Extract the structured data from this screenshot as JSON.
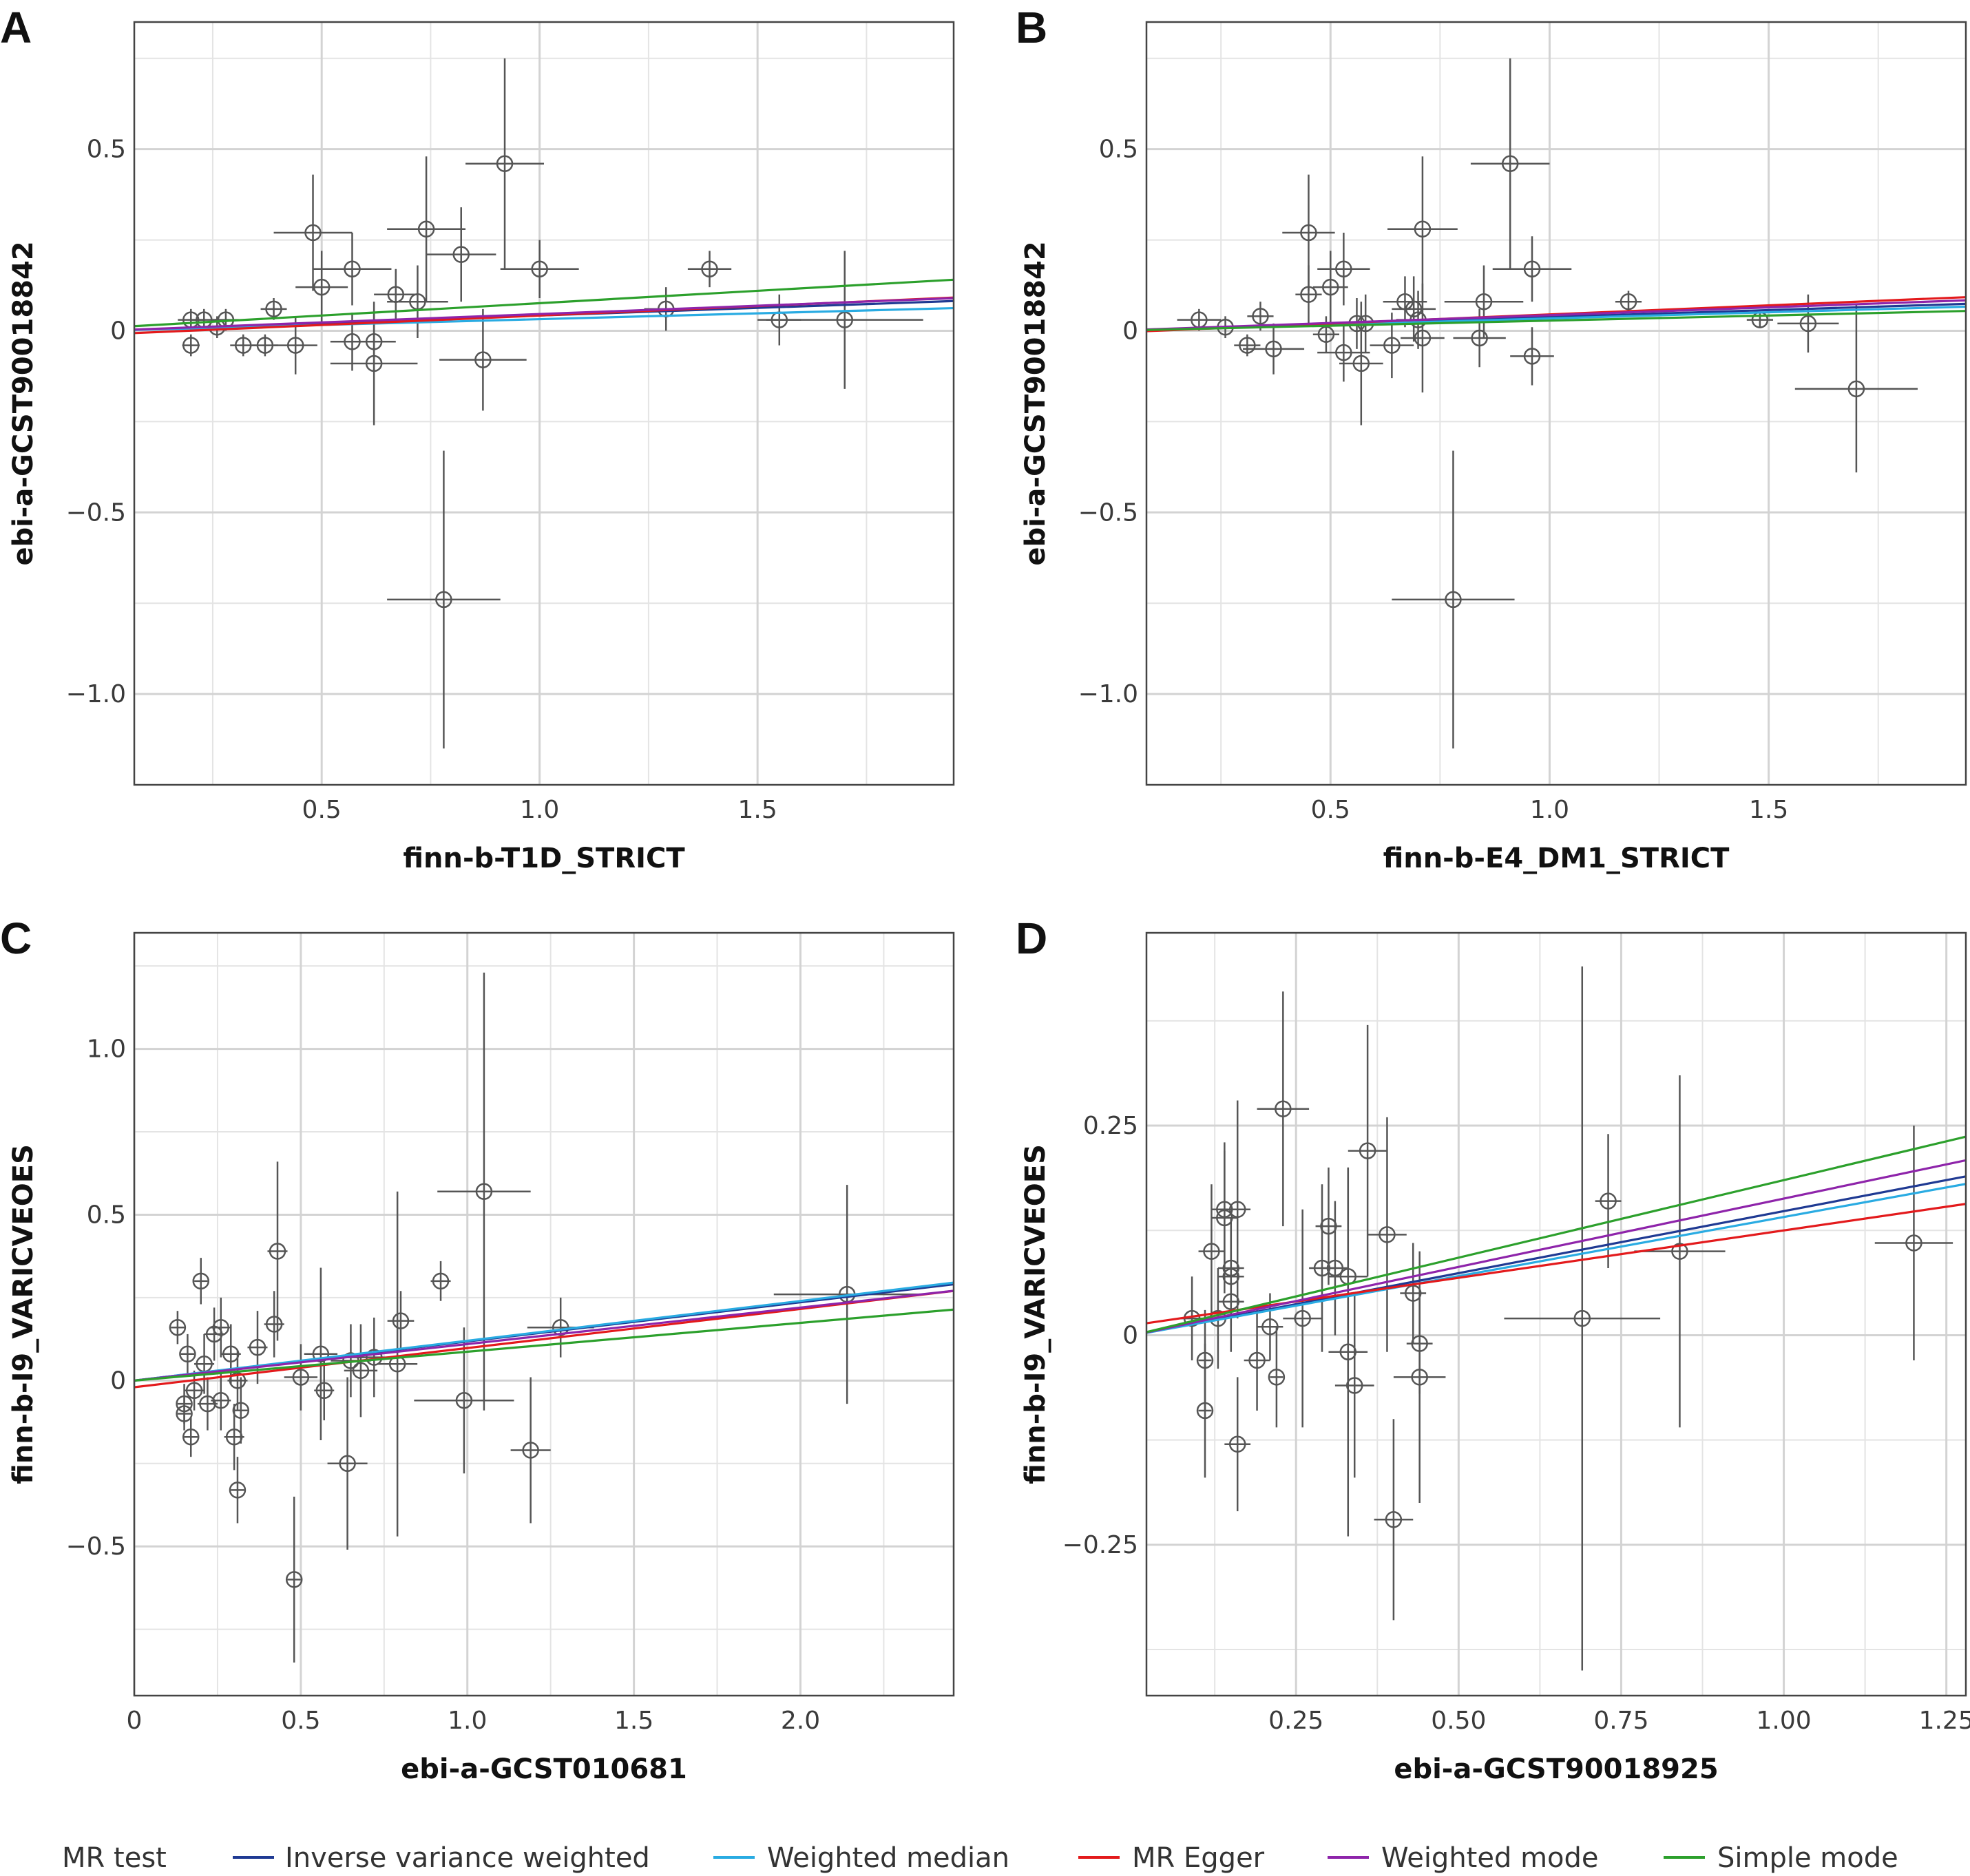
{
  "legend": {
    "title": "MR test",
    "items": [
      {
        "label": "Inverse variance weighted",
        "color": "#1f3a93"
      },
      {
        "label": "Weighted median",
        "color": "#29abe2"
      },
      {
        "label": "MR Egger",
        "color": "#e31a1c"
      },
      {
        "label": "Weighted mode",
        "color": "#8e24aa"
      },
      {
        "label": "Simple mode",
        "color": "#2ca02c"
      }
    ]
  },
  "chart_data": [
    {
      "panel": "A",
      "type": "scatter",
      "xlabel": "finn-b-T1D_STRICT",
      "ylabel": "ebi-a-GCST90018842",
      "xlim": [
        0.07,
        1.95
      ],
      "ylim": [
        -1.25,
        0.85
      ],
      "x_ticks": [
        0.5,
        1.0,
        1.5
      ],
      "x_tick_labels": [
        "0.5",
        "1.0",
        "1.5"
      ],
      "y_ticks": [
        -1.0,
        -0.5,
        0,
        0.5
      ],
      "y_tick_labels": [
        "−1.0",
        "−0.5",
        "0",
        "0.5"
      ],
      "grid": true,
      "points": [
        {
          "x": 0.2,
          "y": 0.03,
          "xerr": 0.03,
          "yerr": 0.03
        },
        {
          "x": 0.2,
          "y": -0.04,
          "xerr": 0.02,
          "yerr": 0.03
        },
        {
          "x": 0.23,
          "y": 0.03,
          "xerr": 0.03,
          "yerr": 0.03
        },
        {
          "x": 0.26,
          "y": 0.01,
          "xerr": 0.03,
          "yerr": 0.03
        },
        {
          "x": 0.28,
          "y": 0.03,
          "xerr": 0.03,
          "yerr": 0.03
        },
        {
          "x": 0.32,
          "y": -0.04,
          "xerr": 0.03,
          "yerr": 0.03
        },
        {
          "x": 0.37,
          "y": -0.04,
          "xerr": 0.03,
          "yerr": 0.03
        },
        {
          "x": 0.39,
          "y": 0.06,
          "xerr": 0.03,
          "yerr": 0.03
        },
        {
          "x": 0.44,
          "y": -0.04,
          "xerr": 0.05,
          "yerr": 0.08
        },
        {
          "x": 0.48,
          "y": 0.27,
          "xerr": 0.09,
          "yerr": 0.16
        },
        {
          "x": 0.5,
          "y": 0.12,
          "xerr": 0.06,
          "yerr": 0.1
        },
        {
          "x": 0.57,
          "y": 0.17,
          "xerr": 0.09,
          "yerr": 0.1
        },
        {
          "x": 0.57,
          "y": -0.03,
          "xerr": 0.05,
          "yerr": 0.08
        },
        {
          "x": 0.62,
          "y": -0.03,
          "xerr": 0.05,
          "yerr": 0.08
        },
        {
          "x": 0.62,
          "y": -0.09,
          "xerr": 0.1,
          "yerr": 0.17
        },
        {
          "x": 0.67,
          "y": 0.1,
          "xerr": 0.05,
          "yerr": 0.07
        },
        {
          "x": 0.72,
          "y": 0.08,
          "xerr": 0.07,
          "yerr": 0.1
        },
        {
          "x": 0.74,
          "y": 0.28,
          "xerr": 0.09,
          "yerr": 0.2
        },
        {
          "x": 0.78,
          "y": -0.74,
          "xerr": 0.13,
          "yerr": 0.41
        },
        {
          "x": 0.82,
          "y": 0.21,
          "xerr": 0.08,
          "yerr": 0.13
        },
        {
          "x": 0.87,
          "y": -0.08,
          "xerr": 0.1,
          "yerr": 0.14
        },
        {
          "x": 0.92,
          "y": 0.46,
          "xerr": 0.09,
          "yerr": 0.29
        },
        {
          "x": 1.0,
          "y": 0.17,
          "xerr": 0.09,
          "yerr": 0.08
        },
        {
          "x": 1.29,
          "y": 0.06,
          "xerr": 0.05,
          "yerr": 0.06
        },
        {
          "x": 1.39,
          "y": 0.17,
          "xerr": 0.05,
          "yerr": 0.05
        },
        {
          "x": 1.55,
          "y": 0.03,
          "xerr": 0.05,
          "yerr": 0.07
        },
        {
          "x": 1.7,
          "y": 0.03,
          "xerr": 0.18,
          "yerr": 0.19
        }
      ],
      "lines": [
        {
          "method": "Inverse variance weighted",
          "slope": 0.042,
          "intercept": 0.0
        },
        {
          "method": "Weighted median",
          "slope": 0.032,
          "intercept": 0.0
        },
        {
          "method": "MR Egger",
          "slope": 0.052,
          "intercept": -0.01
        },
        {
          "method": "Weighted mode",
          "slope": 0.046,
          "intercept": 0.0
        },
        {
          "method": "Simple mode",
          "slope": 0.068,
          "intercept": 0.008
        }
      ]
    },
    {
      "panel": "B",
      "type": "scatter",
      "xlabel": "finn-b-E4_DM1_STRICT",
      "ylabel": "ebi-a-GCST90018842",
      "xlim": [
        0.08,
        1.95
      ],
      "ylim": [
        -1.25,
        0.85
      ],
      "x_ticks": [
        0.5,
        1.0,
        1.5
      ],
      "x_tick_labels": [
        "0.5",
        "1.0",
        "1.5"
      ],
      "y_ticks": [
        -1.0,
        -0.5,
        0,
        0.5
      ],
      "y_tick_labels": [
        "−1.0",
        "−0.5",
        "0",
        "0.5"
      ],
      "grid": true,
      "points": [
        {
          "x": 0.2,
          "y": 0.03,
          "xerr": 0.05,
          "yerr": 0.03
        },
        {
          "x": 0.26,
          "y": 0.01,
          "xerr": 0.03,
          "yerr": 0.03
        },
        {
          "x": 0.31,
          "y": -0.04,
          "xerr": 0.03,
          "yerr": 0.03
        },
        {
          "x": 0.34,
          "y": 0.04,
          "xerr": 0.03,
          "yerr": 0.04
        },
        {
          "x": 0.37,
          "y": -0.05,
          "xerr": 0.07,
          "yerr": 0.07
        },
        {
          "x": 0.45,
          "y": 0.27,
          "xerr": 0.06,
          "yerr": 0.16
        },
        {
          "x": 0.45,
          "y": 0.1,
          "xerr": 0.03,
          "yerr": 0.08
        },
        {
          "x": 0.49,
          "y": -0.01,
          "xerr": 0.03,
          "yerr": 0.05
        },
        {
          "x": 0.5,
          "y": 0.12,
          "xerr": 0.04,
          "yerr": 0.1
        },
        {
          "x": 0.53,
          "y": 0.17,
          "xerr": 0.06,
          "yerr": 0.1
        },
        {
          "x": 0.53,
          "y": -0.06,
          "xerr": 0.06,
          "yerr": 0.08
        },
        {
          "x": 0.56,
          "y": 0.02,
          "xerr": 0.04,
          "yerr": 0.07
        },
        {
          "x": 0.57,
          "y": -0.09,
          "xerr": 0.05,
          "yerr": 0.17
        },
        {
          "x": 0.58,
          "y": 0.02,
          "xerr": 0.04,
          "yerr": 0.08
        },
        {
          "x": 0.64,
          "y": -0.04,
          "xerr": 0.05,
          "yerr": 0.09
        },
        {
          "x": 0.67,
          "y": 0.08,
          "xerr": 0.05,
          "yerr": 0.07
        },
        {
          "x": 0.69,
          "y": 0.06,
          "xerr": 0.05,
          "yerr": 0.09
        },
        {
          "x": 0.7,
          "y": 0.03,
          "xerr": 0.05,
          "yerr": 0.08
        },
        {
          "x": 0.71,
          "y": 0.28,
          "xerr": 0.08,
          "yerr": 0.2
        },
        {
          "x": 0.71,
          "y": -0.02,
          "xerr": 0.05,
          "yerr": 0.15
        },
        {
          "x": 0.78,
          "y": -0.74,
          "xerr": 0.14,
          "yerr": 0.41
        },
        {
          "x": 0.84,
          "y": -0.02,
          "xerr": 0.06,
          "yerr": 0.08
        },
        {
          "x": 0.85,
          "y": 0.08,
          "xerr": 0.09,
          "yerr": 0.1
        },
        {
          "x": 0.91,
          "y": 0.46,
          "xerr": 0.09,
          "yerr": 0.29
        },
        {
          "x": 0.96,
          "y": 0.17,
          "xerr": 0.09,
          "yerr": 0.09
        },
        {
          "x": 0.96,
          "y": -0.07,
          "xerr": 0.05,
          "yerr": 0.08
        },
        {
          "x": 1.18,
          "y": 0.08,
          "xerr": 0.03,
          "yerr": 0.03
        },
        {
          "x": 1.48,
          "y": 0.03,
          "xerr": 0.03,
          "yerr": 0.02
        },
        {
          "x": 1.59,
          "y": 0.02,
          "xerr": 0.07,
          "yerr": 0.08
        },
        {
          "x": 1.7,
          "y": -0.16,
          "xerr": 0.14,
          "yerr": 0.23
        }
      ],
      "lines": [
        {
          "method": "Inverse variance weighted",
          "slope": 0.038,
          "intercept": 0.0
        },
        {
          "method": "Weighted median",
          "slope": 0.034,
          "intercept": 0.0
        },
        {
          "method": "MR Egger",
          "slope": 0.05,
          "intercept": -0.005
        },
        {
          "method": "Weighted mode",
          "slope": 0.043,
          "intercept": 0.0
        },
        {
          "method": "Simple mode",
          "slope": 0.028,
          "intercept": 0.0
        }
      ]
    },
    {
      "panel": "C",
      "type": "scatter",
      "xlabel": "ebi-a-GCST010681",
      "ylabel": "finn-b-I9_VARICVEOES",
      "xlim": [
        0.0,
        2.46
      ],
      "ylim": [
        -0.95,
        1.35
      ],
      "x_ticks": [
        0,
        0.5,
        1.0,
        1.5,
        2.0
      ],
      "x_tick_labels": [
        "0",
        "0.5",
        "1.0",
        "1.5",
        "2.0"
      ],
      "y_ticks": [
        -0.5,
        0,
        0.5,
        1.0
      ],
      "y_tick_labels": [
        "−0.5",
        "0",
        "0.5",
        "1.0"
      ],
      "grid": true,
      "points": [
        {
          "x": 0.13,
          "y": 0.16,
          "xerr": 0.02,
          "yerr": 0.05
        },
        {
          "x": 0.15,
          "y": -0.07,
          "xerr": 0.02,
          "yerr": 0.06
        },
        {
          "x": 0.15,
          "y": -0.1,
          "xerr": 0.02,
          "yerr": 0.05
        },
        {
          "x": 0.16,
          "y": 0.08,
          "xerr": 0.02,
          "yerr": 0.06
        },
        {
          "x": 0.17,
          "y": -0.17,
          "xerr": 0.02,
          "yerr": 0.06
        },
        {
          "x": 0.18,
          "y": -0.03,
          "xerr": 0.03,
          "yerr": 0.06
        },
        {
          "x": 0.2,
          "y": 0.3,
          "xerr": 0.02,
          "yerr": 0.07
        },
        {
          "x": 0.21,
          "y": 0.05,
          "xerr": 0.03,
          "yerr": 0.09
        },
        {
          "x": 0.22,
          "y": -0.07,
          "xerr": 0.03,
          "yerr": 0.08
        },
        {
          "x": 0.24,
          "y": 0.14,
          "xerr": 0.03,
          "yerr": 0.08
        },
        {
          "x": 0.26,
          "y": 0.16,
          "xerr": 0.03,
          "yerr": 0.09
        },
        {
          "x": 0.26,
          "y": -0.06,
          "xerr": 0.03,
          "yerr": 0.09
        },
        {
          "x": 0.29,
          "y": 0.08,
          "xerr": 0.03,
          "yerr": 0.09
        },
        {
          "x": 0.3,
          "y": -0.17,
          "xerr": 0.03,
          "yerr": 0.1
        },
        {
          "x": 0.31,
          "y": -0.33,
          "xerr": 0.02,
          "yerr": 0.1
        },
        {
          "x": 0.31,
          "y": 0.0,
          "xerr": 0.03,
          "yerr": 0.09
        },
        {
          "x": 0.32,
          "y": -0.09,
          "xerr": 0.02,
          "yerr": 0.1
        },
        {
          "x": 0.37,
          "y": 0.1,
          "xerr": 0.03,
          "yerr": 0.11
        },
        {
          "x": 0.42,
          "y": 0.17,
          "xerr": 0.03,
          "yerr": 0.1
        },
        {
          "x": 0.43,
          "y": 0.39,
          "xerr": 0.03,
          "yerr": 0.27
        },
        {
          "x": 0.48,
          "y": -0.6,
          "xerr": 0.02,
          "yerr": 0.25
        },
        {
          "x": 0.5,
          "y": 0.01,
          "xerr": 0.05,
          "yerr": 0.1
        },
        {
          "x": 0.56,
          "y": 0.08,
          "xerr": 0.05,
          "yerr": 0.26
        },
        {
          "x": 0.57,
          "y": -0.03,
          "xerr": 0.03,
          "yerr": 0.09
        },
        {
          "x": 0.64,
          "y": -0.25,
          "xerr": 0.06,
          "yerr": 0.26
        },
        {
          "x": 0.65,
          "y": 0.06,
          "xerr": 0.06,
          "yerr": 0.11
        },
        {
          "x": 0.68,
          "y": 0.03,
          "xerr": 0.05,
          "yerr": 0.14
        },
        {
          "x": 0.72,
          "y": 0.07,
          "xerr": 0.08,
          "yerr": 0.12
        },
        {
          "x": 0.79,
          "y": 0.05,
          "xerr": 0.06,
          "yerr": 0.52
        },
        {
          "x": 0.8,
          "y": 0.18,
          "xerr": 0.04,
          "yerr": 0.09
        },
        {
          "x": 0.92,
          "y": 0.3,
          "xerr": 0.03,
          "yerr": 0.06
        },
        {
          "x": 0.99,
          "y": -0.06,
          "xerr": 0.15,
          "yerr": 0.22
        },
        {
          "x": 1.05,
          "y": 0.57,
          "xerr": 0.14,
          "yerr": 0.66
        },
        {
          "x": 1.19,
          "y": -0.21,
          "xerr": 0.06,
          "yerr": 0.22
        },
        {
          "x": 1.28,
          "y": 0.16,
          "xerr": 0.1,
          "yerr": 0.09
        },
        {
          "x": 2.14,
          "y": 0.26,
          "xerr": 0.22,
          "yerr": 0.33
        }
      ],
      "lines": [
        {
          "method": "Inverse variance weighted",
          "slope": 0.118,
          "intercept": 0.0
        },
        {
          "method": "Weighted median",
          "slope": 0.12,
          "intercept": 0.0
        },
        {
          "method": "MR Egger",
          "slope": 0.118,
          "intercept": -0.02
        },
        {
          "method": "Weighted mode",
          "slope": 0.11,
          "intercept": 0.0
        },
        {
          "method": "Simple mode",
          "slope": 0.087,
          "intercept": 0.0
        }
      ]
    },
    {
      "panel": "D",
      "type": "scatter",
      "xlabel": "ebi-a-GCST90018925",
      "ylabel": "finn-b-I9_VARICVEOES",
      "xlim": [
        0.02,
        1.28
      ],
      "ylim": [
        -0.43,
        0.48
      ],
      "x_ticks": [
        0.25,
        0.5,
        0.75,
        1.0,
        1.25
      ],
      "x_tick_labels": [
        "0.25",
        "0.50",
        "0.75",
        "1.00",
        "1.25"
      ],
      "y_ticks": [
        -0.25,
        0,
        0.25
      ],
      "y_tick_labels": [
        "−0.25",
        "0",
        "0.25"
      ],
      "grid": true,
      "points": [
        {
          "x": 0.09,
          "y": 0.02,
          "xerr": 0.02,
          "yerr": 0.05
        },
        {
          "x": 0.11,
          "y": -0.09,
          "xerr": 0.01,
          "yerr": 0.08
        },
        {
          "x": 0.11,
          "y": -0.03,
          "xerr": 0.01,
          "yerr": 0.06
        },
        {
          "x": 0.12,
          "y": 0.1,
          "xerr": 0.02,
          "yerr": 0.08
        },
        {
          "x": 0.13,
          "y": 0.02,
          "xerr": 0.01,
          "yerr": 0.06
        },
        {
          "x": 0.14,
          "y": 0.14,
          "xerr": 0.02,
          "yerr": 0.09
        },
        {
          "x": 0.14,
          "y": 0.15,
          "xerr": 0.02,
          "yerr": 0.07
        },
        {
          "x": 0.15,
          "y": 0.08,
          "xerr": 0.02,
          "yerr": 0.06
        },
        {
          "x": 0.15,
          "y": 0.04,
          "xerr": 0.02,
          "yerr": 0.06
        },
        {
          "x": 0.15,
          "y": 0.07,
          "xerr": 0.02,
          "yerr": 0.06
        },
        {
          "x": 0.16,
          "y": 0.15,
          "xerr": 0.02,
          "yerr": 0.13
        },
        {
          "x": 0.16,
          "y": -0.13,
          "xerr": 0.02,
          "yerr": 0.08
        },
        {
          "x": 0.19,
          "y": -0.03,
          "xerr": 0.02,
          "yerr": 0.06
        },
        {
          "x": 0.21,
          "y": 0.01,
          "xerr": 0.02,
          "yerr": 0.04
        },
        {
          "x": 0.22,
          "y": -0.05,
          "xerr": 0.01,
          "yerr": 0.06
        },
        {
          "x": 0.23,
          "y": 0.27,
          "xerr": 0.04,
          "yerr": 0.14
        },
        {
          "x": 0.26,
          "y": 0.02,
          "xerr": 0.03,
          "yerr": 0.13
        },
        {
          "x": 0.29,
          "y": 0.08,
          "xerr": 0.02,
          "yerr": 0.1
        },
        {
          "x": 0.3,
          "y": 0.13,
          "xerr": 0.02,
          "yerr": 0.07
        },
        {
          "x": 0.31,
          "y": 0.08,
          "xerr": 0.02,
          "yerr": 0.08
        },
        {
          "x": 0.33,
          "y": -0.02,
          "xerr": 0.03,
          "yerr": 0.22
        },
        {
          "x": 0.33,
          "y": 0.07,
          "xerr": 0.03,
          "yerr": 0.13
        },
        {
          "x": 0.34,
          "y": -0.06,
          "xerr": 0.03,
          "yerr": 0.11
        },
        {
          "x": 0.36,
          "y": 0.22,
          "xerr": 0.03,
          "yerr": 0.15
        },
        {
          "x": 0.39,
          "y": 0.12,
          "xerr": 0.03,
          "yerr": 0.14
        },
        {
          "x": 0.4,
          "y": -0.22,
          "xerr": 0.03,
          "yerr": 0.12
        },
        {
          "x": 0.43,
          "y": 0.05,
          "xerr": 0.02,
          "yerr": 0.06
        },
        {
          "x": 0.44,
          "y": -0.01,
          "xerr": 0.02,
          "yerr": 0.06
        },
        {
          "x": 0.44,
          "y": -0.05,
          "xerr": 0.04,
          "yerr": 0.15
        },
        {
          "x": 0.69,
          "y": 0.02,
          "xerr": 0.12,
          "yerr": 0.42
        },
        {
          "x": 0.73,
          "y": 0.16,
          "xerr": 0.02,
          "yerr": 0.08
        },
        {
          "x": 0.84,
          "y": 0.1,
          "xerr": 0.07,
          "yerr": 0.21
        },
        {
          "x": 1.2,
          "y": 0.11,
          "xerr": 0.06,
          "yerr": 0.14
        }
      ],
      "lines": [
        {
          "method": "Inverse variance weighted",
          "slope": 0.148,
          "intercept": 0.0
        },
        {
          "method": "Weighted median",
          "slope": 0.141,
          "intercept": 0.0
        },
        {
          "method": "MR Egger",
          "slope": 0.113,
          "intercept": 0.012
        },
        {
          "method": "Weighted mode",
          "slope": 0.163,
          "intercept": 0.0
        },
        {
          "method": "Simple mode",
          "slope": 0.185,
          "intercept": 0.0
        }
      ]
    }
  ]
}
